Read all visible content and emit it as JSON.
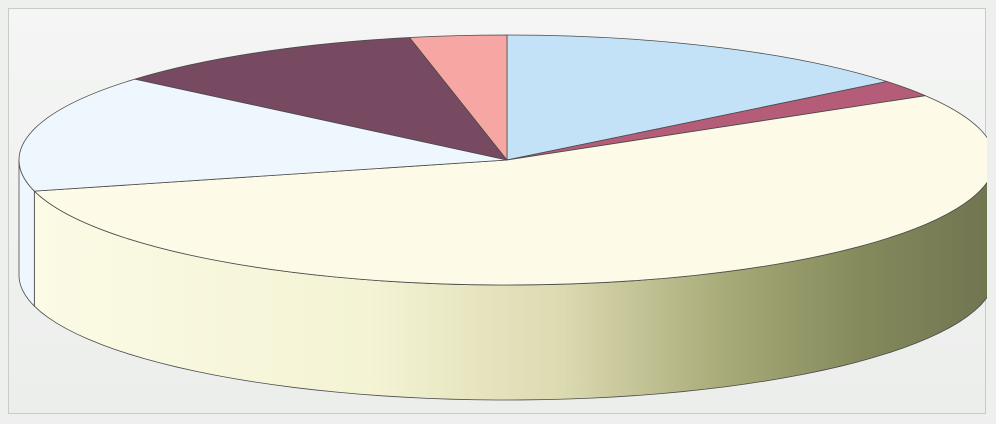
{
  "chart_data": {
    "type": "pie",
    "style": "3d",
    "title": "",
    "legend": "none",
    "slices": [
      {
        "value": 14.2,
        "color": "#c4e2f7"
      },
      {
        "value": 2.2,
        "color": "#b55d78"
      },
      {
        "value": 54.6,
        "color": "#fdfbe8",
        "side_dark": "#858a5c"
      },
      {
        "value": 15.2,
        "color": "#eef7fd"
      },
      {
        "value": 10.6,
        "color": "#774a62"
      },
      {
        "value": 3.2,
        "color": "#f6a7a3"
      }
    ]
  }
}
